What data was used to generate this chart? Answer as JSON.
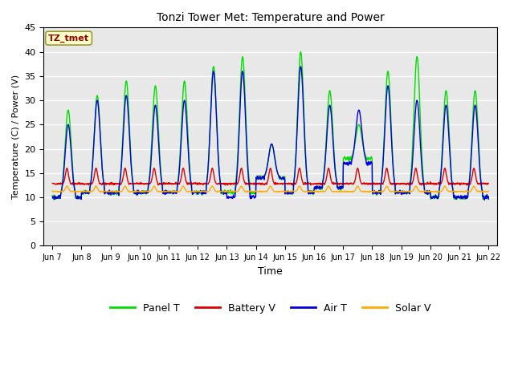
{
  "title": "Tonzi Tower Met: Temperature and Power",
  "xlabel": "Time",
  "ylabel": "Temperature (C) / Power (V)",
  "ylim": [
    0,
    45
  ],
  "yticks": [
    0,
    5,
    10,
    15,
    20,
    25,
    30,
    35,
    40,
    45
  ],
  "xtick_labels": [
    "Jun 7",
    "Jun 8",
    "Jun 9",
    "Jun 10",
    "Jun 11",
    "Jun 12",
    "Jun 13",
    "Jun 14",
    "Jun 15",
    "Jun 16",
    "Jun 17",
    "Jun 18",
    "Jun 19",
    "Jun 20",
    "Jun 21",
    "Jun 22"
  ],
  "annotation_text": "TZ_tmet",
  "annotation_bg": "#ffffcc",
  "annotation_color": "#990000",
  "annotation_edge": "#999933",
  "colors": {
    "panel_t": "#00dd00",
    "battery_v": "#dd0000",
    "air_t": "#0000dd",
    "solar_v": "#ffaa00"
  },
  "legend_labels": [
    "Panel T",
    "Battery V",
    "Air T",
    "Solar V"
  ],
  "bg_color": "#e8e8e8",
  "fig_bg": "#ffffff",
  "grid_color": "#ffffff",
  "num_days": 15,
  "samples_per_day": 96,
  "panel_peaks": [
    28,
    31,
    34,
    33,
    34,
    37,
    39,
    21,
    40,
    32,
    25,
    36,
    39,
    32,
    32
  ],
  "panel_troughs": [
    10,
    11,
    11,
    11,
    11,
    11,
    11,
    14,
    11,
    12,
    18,
    11,
    11,
    10,
    10
  ],
  "air_peaks": [
    25,
    30,
    31,
    29,
    30,
    36,
    36,
    21,
    37,
    29,
    28,
    33,
    30,
    29,
    29
  ],
  "air_troughs": [
    10,
    11,
    11,
    11,
    11,
    11,
    10,
    14,
    11,
    12,
    17,
    11,
    11,
    10,
    10
  ],
  "batt_base": 12.8,
  "batt_peak": 16.0,
  "solar_base": 11.2,
  "solar_peak": 12.3
}
